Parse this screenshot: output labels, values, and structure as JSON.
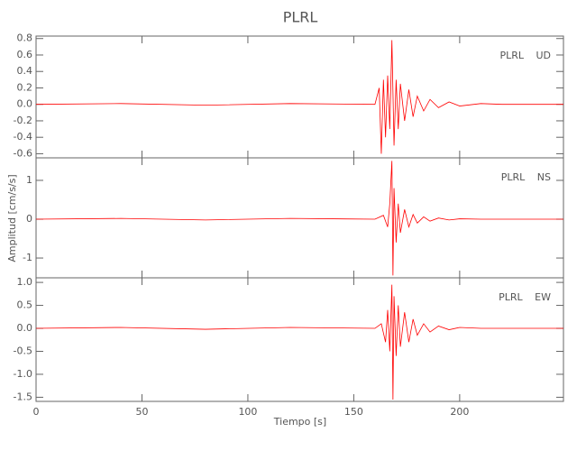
{
  "title": "PLRL",
  "x_label": "Tiempo [s]",
  "y_label": "Amplitud [cm/s/s]",
  "chart_data": [
    {
      "type": "line",
      "label": "PLRL UD",
      "color": "#ff0000",
      "x": [
        0,
        40,
        80,
        120,
        160,
        162,
        163,
        164,
        165,
        166,
        167,
        168,
        169,
        170,
        171,
        172,
        174,
        176,
        178,
        180,
        183,
        186,
        190,
        195,
        200,
        210,
        220,
        249
      ],
      "values": [
        0,
        0.01,
        -0.01,
        0.01,
        0,
        0.2,
        -0.6,
        0.3,
        -0.4,
        0.35,
        -0.3,
        0.78,
        -0.5,
        0.3,
        -0.3,
        0.25,
        -0.2,
        0.18,
        -0.15,
        0.1,
        -0.08,
        0.06,
        -0.04,
        0.03,
        -0.02,
        0.01,
        0,
        0
      ],
      "xlim": [
        0,
        249
      ],
      "ylim": [
        -0.65,
        0.83
      ],
      "yticks": [
        0.8,
        0.6,
        0.4,
        0.2,
        {
          "value": 0,
          "label": "0.0"
        },
        -0.2,
        -0.4,
        -0.6
      ]
    },
    {
      "type": "line",
      "label": "PLRL NS",
      "color": "#ff0000",
      "x": [
        0,
        40,
        80,
        120,
        160,
        164,
        166,
        167,
        168,
        168.5,
        169,
        170,
        171,
        172,
        174,
        176,
        178,
        180,
        183,
        186,
        190,
        195,
        200,
        210,
        249
      ],
      "values": [
        0,
        0.02,
        -0.02,
        0.02,
        0,
        0.1,
        -0.2,
        0.4,
        1.5,
        -1.45,
        0.8,
        -0.6,
        0.4,
        -0.35,
        0.25,
        -0.2,
        0.12,
        -0.1,
        0.06,
        -0.05,
        0.03,
        -0.02,
        0.01,
        0,
        0
      ],
      "xlim": [
        0,
        249
      ],
      "ylim": [
        -1.51,
        1.58
      ],
      "yticks": [
        1,
        0,
        -1
      ]
    },
    {
      "type": "line",
      "label": "PLRL EW",
      "color": "#ff0000",
      "x": [
        0,
        40,
        80,
        120,
        160,
        163,
        165,
        166,
        167,
        168,
        168.5,
        169,
        170,
        171,
        172,
        174,
        176,
        178,
        180,
        183,
        186,
        190,
        195,
        200,
        210,
        249
      ],
      "values": [
        0,
        0.02,
        -0.02,
        0.02,
        0,
        0.1,
        -0.3,
        0.4,
        -0.5,
        0.95,
        -1.55,
        0.7,
        -0.6,
        0.5,
        -0.4,
        0.35,
        -0.3,
        0.2,
        -0.15,
        0.1,
        -0.08,
        0.05,
        -0.03,
        0.02,
        0,
        0
      ],
      "xlim": [
        0,
        249
      ],
      "ylim": [
        -1.59,
        1.1
      ],
      "xticks": [
        0,
        50,
        100,
        150,
        200
      ],
      "yticks": [
        {
          "value": 1,
          "label": "1.0"
        },
        0.5,
        {
          "value": 0,
          "label": "0.0"
        },
        -0.5,
        {
          "value": -1,
          "label": "-1.0"
        },
        -1.5
      ]
    }
  ]
}
